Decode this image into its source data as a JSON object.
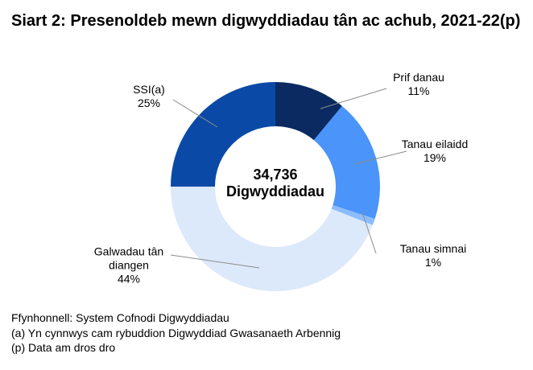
{
  "chart_data": {
    "type": "donut",
    "title": "Siart 2: Presenoldeb mewn digwyddiadau tân ac achub, 2021-22(p)",
    "categories": [
      "Prif danau",
      "Tanau eilaidd",
      "Tanau simnai",
      "Galwadau tân diangen",
      "SSI(a)"
    ],
    "values": [
      11,
      19,
      1,
      44,
      25
    ],
    "value_labels": [
      "11%",
      "19%",
      "1%",
      "44%",
      "25%"
    ],
    "colors": [
      "#0b2a62",
      "#4a94fa",
      "#8dbcfb",
      "#dce9fb",
      "#0a4aa6"
    ],
    "center_lines": [
      "34,736",
      "Digwyddiadau"
    ],
    "notes": [
      "Ffynhonnell: System Cofnodi Digwyddiadau",
      "(a) Yn cynnwys cam rybuddion Digwyddiad Gwasanaeth Arbennig",
      "(p) Data am dros dro"
    ]
  }
}
